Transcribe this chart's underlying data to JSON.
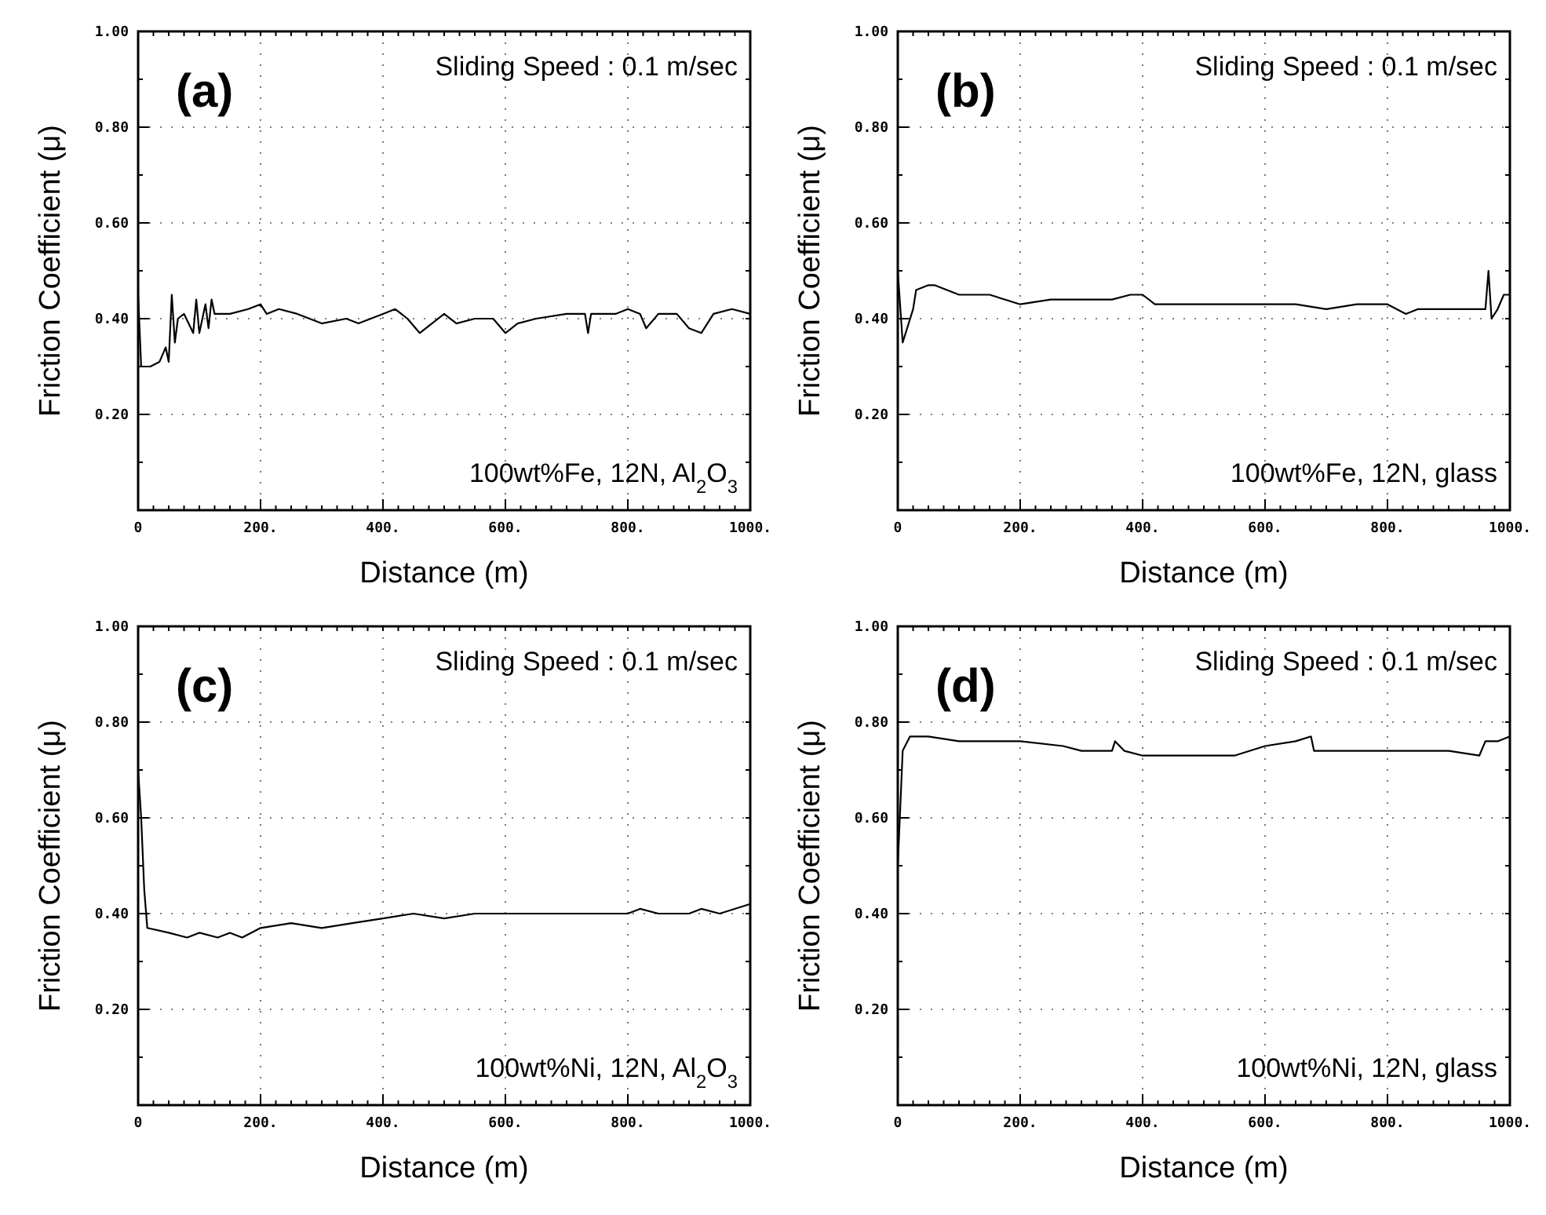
{
  "chart_data": [
    {
      "type": "line",
      "xlabel": "Distance (m)",
      "ylabel": "Friction Coefficient (μ)",
      "annotations": [
        "(a)",
        "Sliding Speed : 0.1 m/sec",
        "100wt%Fe, 12N, Al$_{2}$O$_{3}$"
      ],
      "xlim": [
        0,
        1000
      ],
      "ylim": [
        0,
        1
      ],
      "xticks": [
        {
          "value": 0,
          "label": "0"
        },
        {
          "value": 200,
          "label": "200."
        },
        {
          "value": 400,
          "label": "400."
        },
        {
          "value": 600,
          "label": "600."
        },
        {
          "value": 800,
          "label": "800."
        },
        {
          "value": 1000,
          "label": "1000."
        }
      ],
      "yticks": [
        {
          "value": 0.2,
          "label": "0.20"
        },
        {
          "value": 0.4,
          "label": "0.40"
        },
        {
          "value": 0.6,
          "label": "0.60"
        },
        {
          "value": 0.8,
          "label": "0.80"
        },
        {
          "value": 1,
          "label": "1.00"
        }
      ],
      "grid": true,
      "series": [
        {
          "color": "#000000",
          "x": [
            0,
            5,
            20,
            35,
            45,
            50,
            55,
            60,
            65,
            75,
            90,
            95,
            100,
            110,
            115,
            120,
            125,
            150,
            180,
            200,
            210,
            230,
            260,
            300,
            340,
            360,
            400,
            420,
            440,
            460,
            480,
            500,
            520,
            550,
            580,
            600,
            620,
            650,
            700,
            730,
            735,
            740,
            780,
            800,
            820,
            830,
            850,
            880,
            900,
            920,
            940,
            970,
            1000
          ],
          "values": [
            0.45,
            0.3,
            0.3,
            0.31,
            0.34,
            0.31,
            0.45,
            0.35,
            0.4,
            0.41,
            0.37,
            0.44,
            0.37,
            0.43,
            0.38,
            0.44,
            0.41,
            0.41,
            0.42,
            0.43,
            0.41,
            0.42,
            0.41,
            0.39,
            0.4,
            0.39,
            0.41,
            0.42,
            0.4,
            0.37,
            0.39,
            0.41,
            0.39,
            0.4,
            0.4,
            0.37,
            0.39,
            0.4,
            0.41,
            0.41,
            0.37,
            0.41,
            0.41,
            0.42,
            0.41,
            0.38,
            0.41,
            0.41,
            0.38,
            0.37,
            0.41,
            0.42,
            0.41
          ]
        }
      ]
    },
    {
      "type": "line",
      "xlabel": "Distance (m)",
      "ylabel": "Friction Coefficient (μ)",
      "annotations": [
        "(b)",
        "Sliding Speed : 0.1 m/sec",
        "100wt%Fe, 12N, glass"
      ],
      "xlim": [
        0,
        1000
      ],
      "ylim": [
        0,
        1
      ],
      "xticks": [
        {
          "value": 0,
          "label": "0"
        },
        {
          "value": 200,
          "label": "200."
        },
        {
          "value": 400,
          "label": "400."
        },
        {
          "value": 600,
          "label": "600."
        },
        {
          "value": 800,
          "label": "800."
        },
        {
          "value": 1000,
          "label": "1000."
        }
      ],
      "yticks": [
        {
          "value": 0.2,
          "label": "0.20"
        },
        {
          "value": 0.4,
          "label": "0.40"
        },
        {
          "value": 0.6,
          "label": "0.60"
        },
        {
          "value": 0.8,
          "label": "0.80"
        },
        {
          "value": 1,
          "label": "1.00"
        }
      ],
      "grid": true,
      "series": [
        {
          "color": "#000000",
          "x": [
            0,
            8,
            25,
            30,
            50,
            60,
            100,
            150,
            200,
            250,
            300,
            350,
            380,
            400,
            420,
            450,
            500,
            550,
            600,
            650,
            700,
            750,
            800,
            830,
            850,
            880,
            920,
            960,
            965,
            970,
            980,
            990,
            1000
          ],
          "values": [
            0.5,
            0.35,
            0.42,
            0.46,
            0.47,
            0.47,
            0.45,
            0.45,
            0.43,
            0.44,
            0.44,
            0.44,
            0.45,
            0.45,
            0.43,
            0.43,
            0.43,
            0.43,
            0.43,
            0.43,
            0.42,
            0.43,
            0.43,
            0.41,
            0.42,
            0.42,
            0.42,
            0.42,
            0.5,
            0.4,
            0.42,
            0.45,
            0.45
          ]
        }
      ]
    },
    {
      "type": "line",
      "xlabel": "Distance (m)",
      "ylabel": "Friction Coefficient (μ)",
      "annotations": [
        "(c)",
        "Sliding Speed : 0.1 m/sec",
        "100wt%Ni, 12N, Al$_{2}$O$_{3}$"
      ],
      "xlim": [
        0,
        1000
      ],
      "ylim": [
        0,
        1
      ],
      "xticks": [
        {
          "value": 0,
          "label": "0"
        },
        {
          "value": 200,
          "label": "200."
        },
        {
          "value": 400,
          "label": "400."
        },
        {
          "value": 600,
          "label": "600."
        },
        {
          "value": 800,
          "label": "800."
        },
        {
          "value": 1000,
          "label": "1000."
        }
      ],
      "yticks": [
        {
          "value": 0.2,
          "label": "0.20"
        },
        {
          "value": 0.4,
          "label": "0.40"
        },
        {
          "value": 0.6,
          "label": "0.60"
        },
        {
          "value": 0.8,
          "label": "0.80"
        },
        {
          "value": 1,
          "label": "1.00"
        }
      ],
      "grid": true,
      "series": [
        {
          "color": "#000000",
          "x": [
            0,
            5,
            10,
            15,
            50,
            80,
            100,
            130,
            150,
            170,
            200,
            250,
            300,
            350,
            400,
            450,
            500,
            550,
            600,
            650,
            700,
            750,
            800,
            820,
            850,
            900,
            920,
            950,
            1000
          ],
          "values": [
            0.7,
            0.6,
            0.45,
            0.37,
            0.36,
            0.35,
            0.36,
            0.35,
            0.36,
            0.35,
            0.37,
            0.38,
            0.37,
            0.38,
            0.39,
            0.4,
            0.39,
            0.4,
            0.4,
            0.4,
            0.4,
            0.4,
            0.4,
            0.41,
            0.4,
            0.4,
            0.41,
            0.4,
            0.42
          ]
        }
      ]
    },
    {
      "type": "line",
      "xlabel": "Distance (m)",
      "ylabel": "Friction Coefficient (μ)",
      "annotations": [
        "(d)",
        "Sliding Speed : 0.1 m/sec",
        "100wt%Ni, 12N, glass"
      ],
      "xlim": [
        0,
        1000
      ],
      "ylim": [
        0,
        1
      ],
      "xticks": [
        {
          "value": 0,
          "label": "0"
        },
        {
          "value": 200,
          "label": "200."
        },
        {
          "value": 400,
          "label": "400."
        },
        {
          "value": 600,
          "label": "600."
        },
        {
          "value": 800,
          "label": "800."
        },
        {
          "value": 1000,
          "label": "1000."
        }
      ],
      "yticks": [
        {
          "value": 0.2,
          "label": "0.20"
        },
        {
          "value": 0.4,
          "label": "0.40"
        },
        {
          "value": 0.6,
          "label": "0.60"
        },
        {
          "value": 0.8,
          "label": "0.80"
        },
        {
          "value": 1,
          "label": "1.00"
        }
      ],
      "grid": true,
      "series": [
        {
          "color": "#000000",
          "x": [
            0,
            8,
            20,
            50,
            100,
            150,
            200,
            270,
            300,
            350,
            355,
            370,
            400,
            450,
            500,
            550,
            600,
            650,
            675,
            680,
            700,
            750,
            800,
            850,
            900,
            950,
            960,
            980,
            1000
          ],
          "values": [
            0.5,
            0.74,
            0.77,
            0.77,
            0.76,
            0.76,
            0.76,
            0.75,
            0.74,
            0.74,
            0.76,
            0.74,
            0.73,
            0.73,
            0.73,
            0.73,
            0.75,
            0.76,
            0.77,
            0.74,
            0.74,
            0.74,
            0.74,
            0.74,
            0.74,
            0.73,
            0.76,
            0.76,
            0.77
          ]
        }
      ]
    }
  ]
}
